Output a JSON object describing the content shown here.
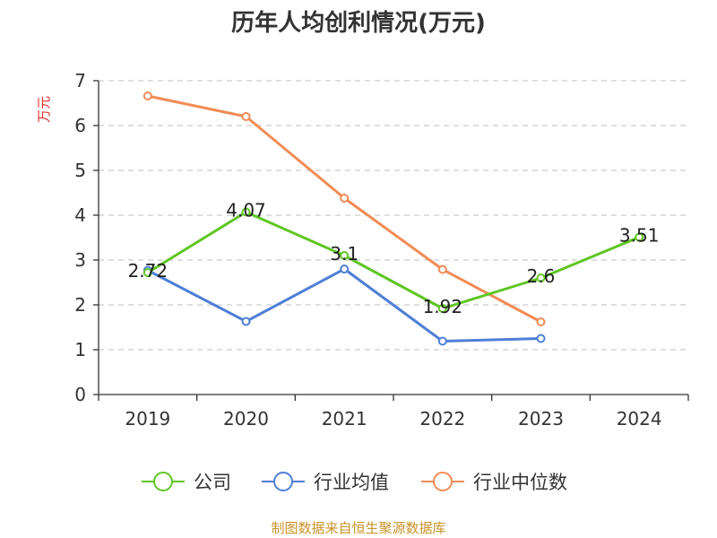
{
  "chart_data": {
    "type": "line",
    "title": "历年人均创利情况(万元)",
    "xlabel": "",
    "ylabel": "万元",
    "categories": [
      "2019",
      "2020",
      "2021",
      "2022",
      "2023",
      "2024"
    ],
    "ylim": [
      0,
      7
    ],
    "yticks": [
      "0",
      "1",
      "2",
      "3",
      "4",
      "5",
      "6",
      "7"
    ],
    "grid": true,
    "legend_position": "bottom",
    "series": [
      {
        "name": "公司",
        "color": "#5fc623",
        "values": [
          2.72,
          4.07,
          3.1,
          1.92,
          2.6,
          3.51
        ],
        "labels": [
          "2.72",
          "4.07",
          "3.1",
          "1.92",
          "2.6",
          "3.51"
        ]
      },
      {
        "name": "行业均值",
        "color": "#4f7fd6",
        "values": [
          2.77,
          1.63,
          2.8,
          1.19,
          1.25,
          null
        ]
      },
      {
        "name": "行业中位数",
        "color": "#f28b55",
        "values": [
          6.66,
          6.2,
          4.38,
          2.79,
          1.62,
          null
        ]
      }
    ],
    "source": "制图数据来自恒生聚源数据库",
    "colors": {
      "ylabel": "#e03131",
      "source": "#c8922a",
      "grid": "#cccccc",
      "axis": "#333333"
    }
  }
}
